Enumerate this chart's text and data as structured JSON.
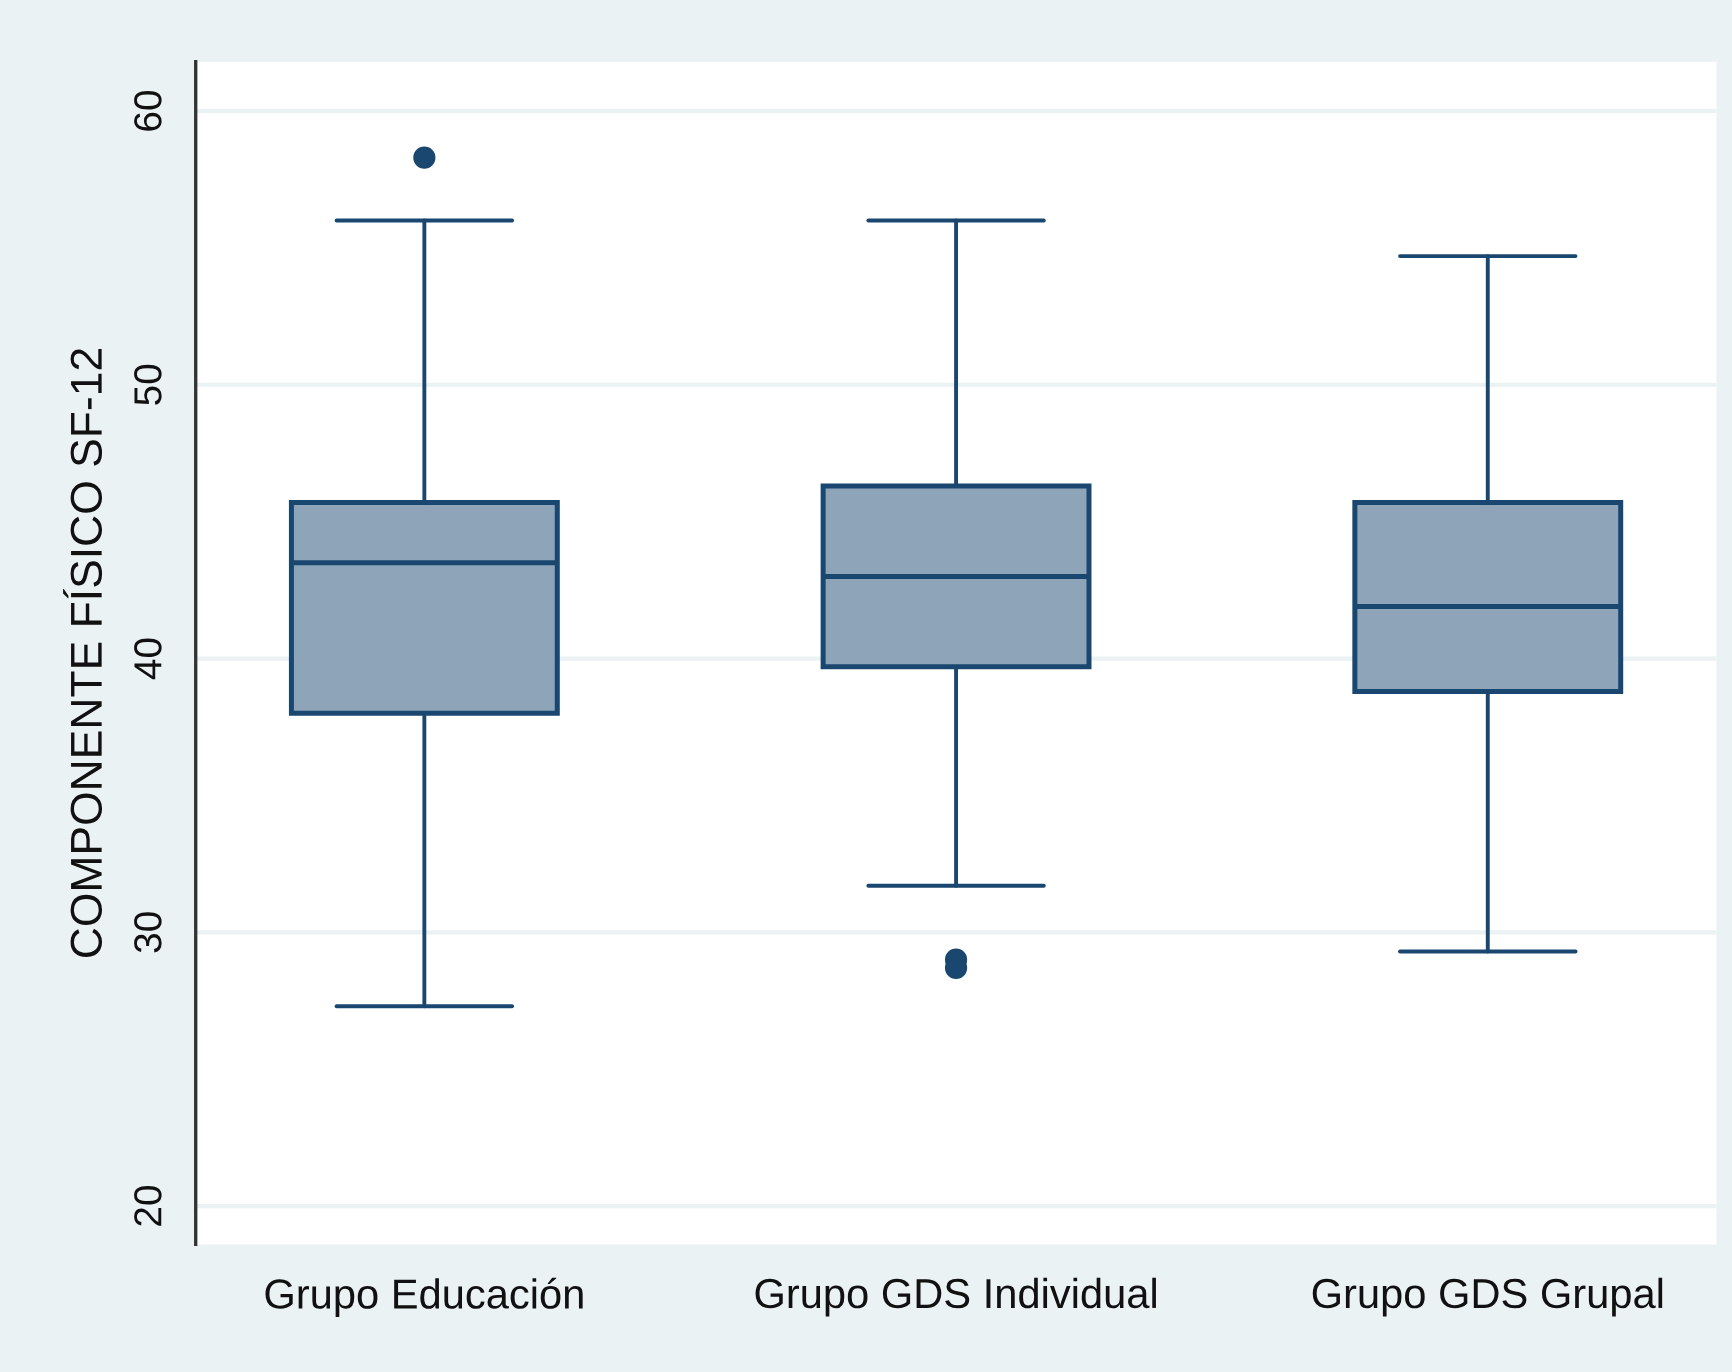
{
  "chart_data": {
    "type": "box",
    "ylabel": "COMPONENTE FÍSICO SF-12",
    "categories": [
      "Grupo Educación",
      "Grupo GDS Individual",
      "Grupo GDS Grupal"
    ],
    "boxes": [
      {
        "low": 27.3,
        "q1": 38.0,
        "median": 43.5,
        "q3": 45.7,
        "high": 56.0,
        "outliers": [
          58.3
        ]
      },
      {
        "low": 31.7,
        "q1": 39.7,
        "median": 43.0,
        "q3": 46.3,
        "high": 56.0,
        "outliers": [
          29.0,
          28.7
        ]
      },
      {
        "low": 29.3,
        "q1": 38.8,
        "median": 41.9,
        "q3": 45.7,
        "high": 54.7
      }
    ],
    "color": "#8ea4b8",
    "ylim": [
      18.6,
      61.8
    ],
    "yticks": [
      20,
      30,
      40,
      50,
      60
    ],
    "grid": "y"
  }
}
